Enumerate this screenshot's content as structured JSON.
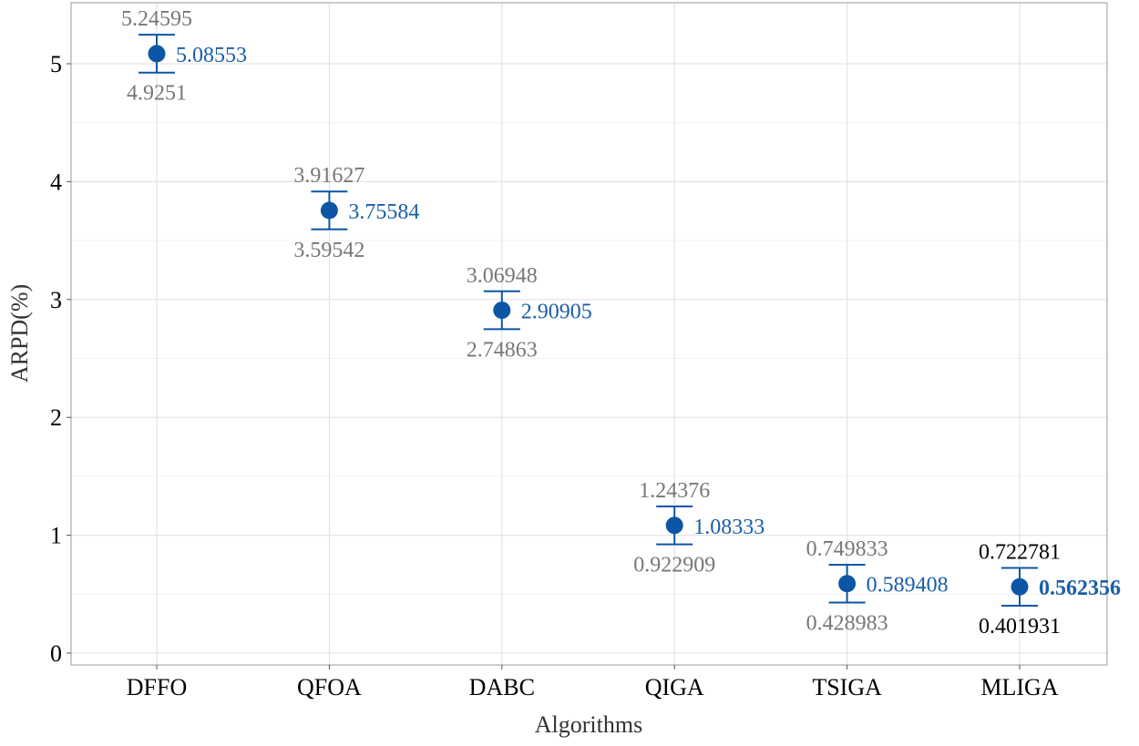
{
  "chart_data": {
    "type": "scatter",
    "subtype": "point-with-error-bars",
    "title": "",
    "xlabel": "Algorithms",
    "ylabel": "ARPD(%)",
    "ylim": [
      0,
      5.3
    ],
    "yticks": [
      0,
      1,
      2,
      3,
      4,
      5
    ],
    "grid": true,
    "categories": [
      "DFFO",
      "QFOA",
      "DABC",
      "QIGA",
      "TSIGA",
      "MLIGA"
    ],
    "mean": [
      5.08553,
      3.75584,
      2.90905,
      1.08333,
      0.589408,
      0.562356
    ],
    "upper": [
      5.24595,
      3.91627,
      3.06948,
      1.24376,
      0.749833,
      0.722781
    ],
    "lower": [
      4.9251,
      3.59542,
      2.74863,
      0.922909,
      0.428983,
      0.401931
    ],
    "mean_labels": [
      "5.08553",
      "3.75584",
      "2.90905",
      "1.08333",
      "0.589408",
      "0.562356"
    ],
    "upper_labels": [
      "5.24595",
      "3.91627",
      "3.06948",
      "1.24376",
      "0.749833",
      "0.722781"
    ],
    "lower_labels": [
      "4.9251",
      "3.59542",
      "2.74863",
      "0.922909",
      "0.428983",
      "0.401931"
    ],
    "highlighted_category": "MLIGA",
    "colors": {
      "point": "#0d56a6",
      "mean_label": "#1a5ea8",
      "bound_label": "#777777",
      "highlight_bound_label": "#000000"
    }
  }
}
